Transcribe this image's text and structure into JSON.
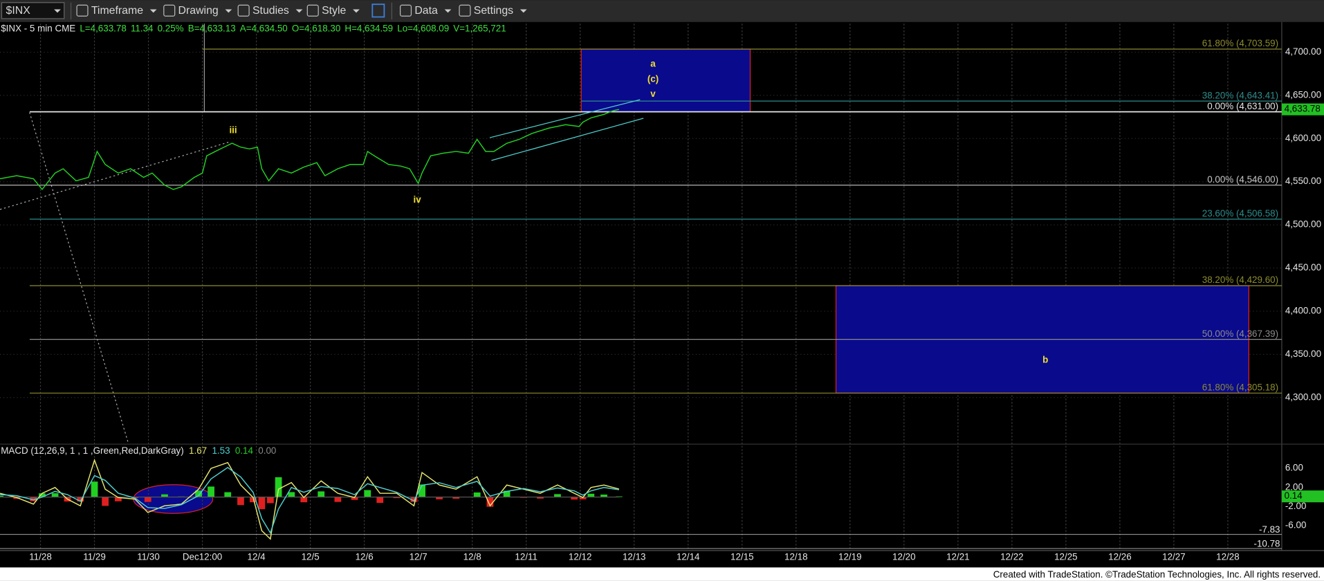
{
  "toolbar": {
    "symbol": "$INX",
    "menus": [
      "Timeframe",
      "Drawing",
      "Studies",
      "Style",
      "Data",
      "Settings"
    ]
  },
  "chart_data": [
    {
      "type": "line",
      "title": "$INX - 5 min CME",
      "quote": [
        "L=4,633.78",
        "11.34",
        "0.25%",
        "B=4,633.13",
        "A=4,634.50",
        "O=4,618.30",
        "H=4,634.59",
        "Lo=4,608.09",
        "V=1,265,721"
      ],
      "x": [
        -0.75,
        -0.44,
        -0.13,
        0.03,
        0.27,
        0.42,
        0.66,
        0.89,
        1.05,
        1.2,
        1.44,
        1.67,
        1.91,
        2.07,
        2.3,
        2.46,
        2.61,
        2.85,
        3.0,
        3.08,
        3.24,
        3.4,
        3.55,
        3.71,
        3.87,
        4.02,
        4.1,
        4.23,
        4.41,
        4.65,
        4.88,
        5.12,
        5.27,
        5.51,
        5.74,
        5.98,
        6.06,
        6.21,
        6.45,
        6.68,
        6.84,
        7.0,
        7.07,
        7.23,
        7.46,
        7.7,
        7.93,
        8.09,
        8.25,
        8.4,
        8.64,
        8.87,
        9.11,
        9.42,
        9.73,
        9.98,
        10.05,
        10.2,
        10.44,
        10.6,
        10.72
      ],
      "series": [
        {
          "color": "#22d022",
          "values": [
            4553.5,
            4557,
            4553.5,
            4541,
            4560,
            4565,
            4551,
            4555,
            4585,
            4570,
            4560,
            4565,
            4555,
            4560,
            4546,
            4541,
            4544,
            4555,
            4560,
            4580,
            4585,
            4590,
            4594.5,
            4590,
            4588,
            4590,
            4565,
            4551,
            4565,
            4560,
            4567,
            4572,
            4557,
            4565,
            4570,
            4570,
            4585,
            4579,
            4570,
            4568,
            4565,
            4548,
            4560,
            4580,
            4583,
            4585,
            4583,
            4599,
            4585,
            4585,
            4594.5,
            4599,
            4606,
            4612,
            4616,
            4614,
            4619,
            4624,
            4628,
            4632,
            4633.78
          ]
        }
      ],
      "last_value_label": "4,633.78",
      "xlim": [
        -0.75,
        23
      ],
      "xticks": [
        {
          "value": 0,
          "label": "11/28"
        },
        {
          "value": 1,
          "label": "11/29"
        },
        {
          "value": 2,
          "label": "11/30"
        },
        {
          "value": 3,
          "label": "Dec12:00"
        },
        {
          "value": 4,
          "label": "12/4"
        },
        {
          "value": 5,
          "label": "12/5"
        },
        {
          "value": 6,
          "label": "12/6"
        },
        {
          "value": 7,
          "label": "12/7"
        },
        {
          "value": 8,
          "label": "12/8"
        },
        {
          "value": 9,
          "label": "12/11"
        },
        {
          "value": 10,
          "label": "12/12"
        },
        {
          "value": 11,
          "label": "12/13"
        },
        {
          "value": 12,
          "label": "12/14"
        },
        {
          "value": 13,
          "label": "12/15"
        },
        {
          "value": 14,
          "label": "12/18"
        },
        {
          "value": 15,
          "label": "12/19"
        },
        {
          "value": 16,
          "label": "12/20"
        },
        {
          "value": 17,
          "label": "12/21"
        },
        {
          "value": 18,
          "label": "12/22"
        },
        {
          "value": 19,
          "label": "12/25"
        },
        {
          "value": 20,
          "label": "12/26"
        },
        {
          "value": 21,
          "label": "12/27"
        },
        {
          "value": 22,
          "label": "12/28"
        }
      ],
      "ylim": [
        4247,
        4733
      ],
      "yticks": [
        {
          "value": 4300,
          "label": "4,300.00"
        },
        {
          "value": 4350,
          "label": "4,350.00"
        },
        {
          "value": 4400,
          "label": "4,400.00"
        },
        {
          "value": 4450,
          "label": "4,450.00"
        },
        {
          "value": 4500,
          "label": "4,500.00"
        },
        {
          "value": 4550,
          "label": "4,550.00"
        },
        {
          "value": 4600,
          "label": "4,600.00"
        },
        {
          "value": 4650,
          "label": "4,650.00"
        },
        {
          "value": 4700,
          "label": "4,700.00"
        }
      ],
      "grid": true,
      "levels": [
        {
          "label": "61.80% (4,703.59)",
          "value": 4703.59,
          "color": "#8c8c30",
          "from": 3.0
        },
        {
          "label": "38.20% (4,643.41)",
          "value": 4643.41,
          "color": "#2e8c8c",
          "from": 10.02
        },
        {
          "label": "0.00% (4,631.00)",
          "value": 4631.0,
          "color": "#e6e6e6",
          "from": -0.2
        },
        {
          "label": "0.00% (4,546.00)",
          "value": 4546.0,
          "color": "#c8c8c8",
          "from": -0.75
        },
        {
          "label": "23.60% (4,506.58)",
          "value": 4506.58,
          "color": "#2e8c8c",
          "from": -0.2
        },
        {
          "label": "38.20% (4,429.60)",
          "value": 4429.6,
          "color": "#8c8c30",
          "from": -0.2
        },
        {
          "label": "50.00% (4,367.39)",
          "value": 4367.39,
          "color": "#8c8c8c",
          "from": -0.2
        },
        {
          "label": "61.80% (4,305.18)",
          "value": 4305.18,
          "color": "#8c8c30",
          "from": -0.2
        }
      ],
      "zones": [
        {
          "x0": 10.02,
          "x1": 13.15,
          "y0": 4631.0,
          "y1": 4703.59,
          "color": "#0a0a8c"
        },
        {
          "x0": 14.74,
          "x1": 22.39,
          "y0": 4305.18,
          "y1": 4429.6,
          "color": "#0a0a8c"
        }
      ],
      "annotations": [
        {
          "text": "a",
          "x": 11.35,
          "y": 4686,
          "size": "large"
        },
        {
          "text": "(c)",
          "x": 11.35,
          "y": 4668.5,
          "size": "small"
        },
        {
          "text": "v",
          "x": 11.35,
          "y": 4651,
          "size": "small"
        },
        {
          "text": "iii",
          "x": 3.57,
          "y": 4609,
          "size": "small"
        },
        {
          "text": "iv",
          "x": 6.98,
          "y": 4528.6,
          "size": "small"
        },
        {
          "text": "b",
          "x": 18.62,
          "y": 4343,
          "size": "large"
        }
      ]
    },
    {
      "type": "line",
      "title": "MACD (12,26,9, 1 , 1 ,Green,Red,DarkGray)",
      "readouts": [
        "1.67",
        "1.53",
        "0.14",
        "0.00"
      ],
      "x": [
        -0.75,
        -0.44,
        -0.13,
        0.03,
        0.27,
        0.5,
        0.74,
        1.0,
        1.2,
        1.44,
        1.75,
        1.99,
        2.3,
        2.61,
        2.93,
        3.16,
        3.47,
        3.71,
        3.94,
        4.1,
        4.26,
        4.41,
        4.65,
        4.88,
        5.2,
        5.51,
        5.82,
        6.06,
        6.29,
        6.6,
        6.92,
        7.07,
        7.39,
        7.7,
        8.09,
        8.33,
        8.64,
        8.95,
        9.26,
        9.58,
        9.89,
        10.05,
        10.2,
        10.44,
        10.72
      ],
      "series": [
        {
          "color": "#e6e66e",
          "values": [
            0.78,
            -0.09,
            -1.48,
            0.78,
            2,
            -0.43,
            -1.83,
            7.74,
            1.65,
            -0.09,
            -0.43,
            -3.22,
            -1.83,
            -1.48,
            1.65,
            6,
            7.22,
            2.52,
            -0.09,
            -7.04,
            -8.78,
            1.65,
            3.04,
            -0.09,
            3.39,
            0.78,
            -0.09,
            4.26,
            0.78,
            0.78,
            -1.83,
            5.13,
            2.52,
            1.65,
            4.26,
            -1.83,
            2.52,
            1.65,
            0.78,
            2.52,
            0.78,
            -0.09,
            2,
            2.52,
            1.67
          ]
        },
        {
          "color": "#4fd0d0",
          "values": [
            0.5,
            0.3,
            -0.6,
            0,
            1.2,
            0.5,
            -0.9,
            4.5,
            3.5,
            0.8,
            -0.2,
            -2.2,
            -2.4,
            -1.6,
            0.3,
            3.8,
            6.2,
            4.2,
            1.0,
            -4.5,
            -7.5,
            -2.5,
            2.0,
            1.0,
            2.2,
            1.8,
            0.5,
            2.8,
            2.0,
            1.0,
            -0.8,
            2.5,
            3.0,
            2.0,
            3.3,
            0.2,
            1.2,
            1.8,
            1.1,
            1.9,
            1.3,
            0.4,
            1.3,
            2.0,
            1.53
          ]
        }
      ],
      "histogram": {
        "up_color": "#22d022",
        "down_color": "#e02020",
        "values": [
          0.28,
          -0.39,
          -0.88,
          0.78,
          0.8,
          -0.93,
          -0.93,
          3.24,
          -1.85,
          -0.89,
          -0.23,
          -1.02,
          0.57,
          0.12,
          1.35,
          2.2,
          1.02,
          -1.68,
          -1.09,
          -2.54,
          -1.28,
          4.15,
          1.04,
          -1.09,
          1.19,
          -1.02,
          -0.59,
          1.46,
          -1.22,
          -0.22,
          -1.03,
          2.63,
          -0.48,
          -0.35,
          0.96,
          -2.03,
          1.32,
          -0.15,
          -0.32,
          0.62,
          -0.52,
          -0.49,
          0.7,
          0.52,
          0.14
        ]
      },
      "last_value_label": "0.14",
      "xlim": [
        -0.75,
        23
      ],
      "ylim": [
        -11.2,
        10.9
      ],
      "yticks": [
        {
          "value": 6,
          "label": "6.00"
        },
        {
          "value": 2,
          "label": "2.00"
        },
        {
          "value": -2,
          "label": "-2.00"
        },
        {
          "value": -6,
          "label": "-6.00"
        }
      ],
      "markers": [
        {
          "value": -7.83,
          "label": "-7.83"
        },
        {
          "value": -10.78,
          "label": "-10.78"
        }
      ]
    }
  ],
  "footer": "Created with TradeStation. ©TradeStation Technologies, Inc. All rights reserved."
}
